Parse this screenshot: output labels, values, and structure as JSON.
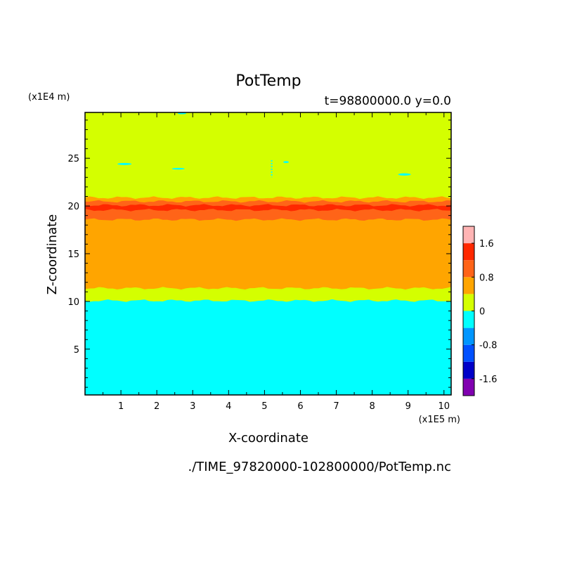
{
  "chart_data": {
    "type": "heatmap",
    "title": "PotTemp",
    "subtitle": "t=98800000.0 y=0.0",
    "xlabel": "X-coordinate",
    "ylabel": "Z-coordinate",
    "x_unit": "(x1E5 m)",
    "y_unit": "(x1E4 m)",
    "footer": "./TIME_97820000-102800000/PotTemp.nc",
    "xlim": [
      0,
      10.2
    ],
    "ylim": [
      0.2,
      29.8
    ],
    "x_ticks": [
      1,
      2,
      3,
      4,
      5,
      6,
      7,
      8,
      9,
      10
    ],
    "y_ticks": [
      5,
      10,
      15,
      20,
      25
    ],
    "colorbar": {
      "levels": [
        -2.0,
        -1.6,
        -1.2,
        -0.8,
        -0.4,
        0,
        0.4,
        0.8,
        1.2,
        1.6,
        2.0
      ],
      "tick_labels": [
        "1.6",
        "0.8",
        "0",
        "-0.8",
        "-1.6"
      ],
      "tick_values": [
        1.6,
        0.8,
        0,
        -0.8,
        -1.6
      ],
      "colors": [
        "#8000b0",
        "#0000c8",
        "#0050ff",
        "#0096ff",
        "#00ffff",
        "#d4ff00",
        "#ffa500",
        "#ff6418",
        "#ff2800",
        "#ffb4b4"
      ]
    },
    "bands": [
      {
        "z_from": 0.2,
        "z_to": 10.1,
        "value": -0.2,
        "color": "#00ffff"
      },
      {
        "z_from": 10.1,
        "z_to": 11.4,
        "value": 0.2,
        "color": "#d4ff00"
      },
      {
        "z_from": 11.4,
        "z_to": 18.6,
        "value": 0.6,
        "color": "#ffa500"
      },
      {
        "z_from": 18.6,
        "z_to": 19.6,
        "value": 1.0,
        "color": "#ff6418"
      },
      {
        "z_from": 19.6,
        "z_to": 20.1,
        "value": 1.4,
        "color": "#ff2800"
      },
      {
        "z_from": 20.1,
        "z_to": 20.5,
        "value": 1.0,
        "color": "#ff6418"
      },
      {
        "z_from": 20.5,
        "z_to": 20.9,
        "value": 0.6,
        "color": "#ffa500"
      },
      {
        "z_from": 20.9,
        "z_to": 29.8,
        "value": 0.2,
        "color": "#d4ff00"
      }
    ],
    "grid": false,
    "legend": "colorbar-right"
  }
}
